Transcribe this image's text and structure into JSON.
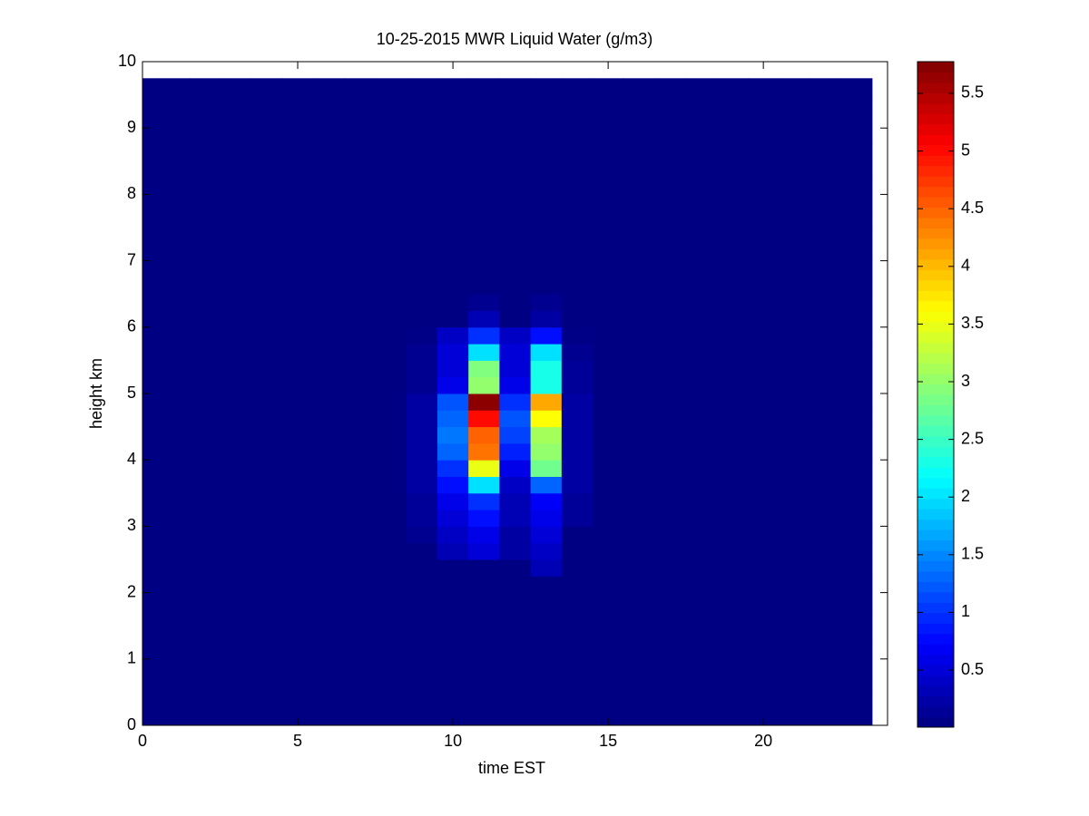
{
  "chart_data": {
    "type": "heatmap",
    "title": "10-25-2015 MWR Liquid Water (g/m3)",
    "x_label": "time EST",
    "y_label": "height km",
    "x_edges": [
      0,
      0.5,
      1.5,
      2.5,
      3.5,
      4.5,
      5.5,
      6.5,
      7.5,
      8.5,
      9.5,
      10.5,
      11.5,
      12.5,
      13.5,
      14.5,
      15.5,
      16.5,
      17.5,
      18.5,
      19.5,
      20.5,
      21.5,
      22.5,
      23.5
    ],
    "y_edges": [
      0,
      0.25,
      0.5,
      0.75,
      1,
      1.25,
      1.5,
      1.75,
      2,
      2.25,
      2.5,
      2.75,
      3,
      3.25,
      3.5,
      3.75,
      4,
      4.25,
      4.5,
      4.75,
      5,
      5.25,
      5.5,
      5.75,
      6,
      6.25,
      6.5,
      6.75,
      7,
      7.25,
      7.5,
      7.75,
      8,
      8.25,
      8.5,
      8.75,
      9,
      9.25,
      9.5,
      9.75
    ],
    "values": [
      [
        0.02,
        0.02,
        0.02,
        0.02,
        0.02,
        0.02,
        0.02,
        0.02,
        0.02,
        0.02,
        0.02,
        0.02,
        0.02,
        0.02,
        0.02,
        0.02,
        0.02,
        0.02,
        0.02,
        0.02,
        0.02,
        0.02,
        0.02,
        0.02
      ],
      [
        0.02,
        0.02,
        0.02,
        0.02,
        0.02,
        0.02,
        0.02,
        0.02,
        0.02,
        0.02,
        0.02,
        0.02,
        0.02,
        0.02,
        0.02,
        0.02,
        0.02,
        0.02,
        0.02,
        0.02,
        0.02,
        0.02,
        0.02,
        0.02
      ],
      [
        0.02,
        0.02,
        0.02,
        0.02,
        0.02,
        0.02,
        0.02,
        0.02,
        0.02,
        0.02,
        0.02,
        0.02,
        0.02,
        0.02,
        0.02,
        0.02,
        0.02,
        0.02,
        0.02,
        0.02,
        0.02,
        0.02,
        0.02,
        0.02
      ],
      [
        0.02,
        0.02,
        0.02,
        0.02,
        0.02,
        0.02,
        0.02,
        0.02,
        0.02,
        0.02,
        0.02,
        0.02,
        0.02,
        0.02,
        0.02,
        0.02,
        0.02,
        0.02,
        0.02,
        0.02,
        0.02,
        0.02,
        0.02,
        0.02
      ],
      [
        0.02,
        0.02,
        0.02,
        0.02,
        0.02,
        0.02,
        0.02,
        0.02,
        0.02,
        0.02,
        0.02,
        0.02,
        0.02,
        0.02,
        0.02,
        0.02,
        0.02,
        0.02,
        0.02,
        0.02,
        0.02,
        0.02,
        0.02,
        0.02
      ],
      [
        0.02,
        0.02,
        0.02,
        0.02,
        0.02,
        0.02,
        0.02,
        0.02,
        0.02,
        0.02,
        0.02,
        0.02,
        0.02,
        0.02,
        0.02,
        0.02,
        0.02,
        0.02,
        0.02,
        0.02,
        0.02,
        0.02,
        0.02,
        0.02
      ],
      [
        0.02,
        0.02,
        0.02,
        0.02,
        0.02,
        0.02,
        0.02,
        0.02,
        0.02,
        0.02,
        0.02,
        0.02,
        0.02,
        0.02,
        0.02,
        0.02,
        0.02,
        0.02,
        0.02,
        0.02,
        0.02,
        0.02,
        0.02,
        0.02
      ],
      [
        0.02,
        0.02,
        0.02,
        0.02,
        0.02,
        0.02,
        0.02,
        0.02,
        0.02,
        0.02,
        0.02,
        0.02,
        0.02,
        0.02,
        0.02,
        0.02,
        0.02,
        0.02,
        0.02,
        0.02,
        0.02,
        0.02,
        0.02,
        0.02
      ],
      [
        0.02,
        0.02,
        0.02,
        0.02,
        0.02,
        0.02,
        0.02,
        0.02,
        0.02,
        0.02,
        0.02,
        0.02,
        0.02,
        0.02,
        0.02,
        0.02,
        0.02,
        0.02,
        0.02,
        0.02,
        0.02,
        0.02,
        0.02,
        0.02
      ],
      [
        0.02,
        0.02,
        0.02,
        0.02,
        0.02,
        0.02,
        0.02,
        0.02,
        0.02,
        0.02,
        0.02,
        0.02,
        0.02,
        0.3,
        0.02,
        0.02,
        0.02,
        0.02,
        0.02,
        0.02,
        0.02,
        0.02,
        0.02,
        0.02
      ],
      [
        0.02,
        0.02,
        0.02,
        0.02,
        0.02,
        0.02,
        0.02,
        0.02,
        0.02,
        0.02,
        0.3,
        0.5,
        0.2,
        0.4,
        0.02,
        0.02,
        0.02,
        0.02,
        0.02,
        0.02,
        0.02,
        0.02,
        0.02,
        0.02
      ],
      [
        0.02,
        0.02,
        0.02,
        0.02,
        0.02,
        0.02,
        0.02,
        0.02,
        0.02,
        0.1,
        0.4,
        0.6,
        0.2,
        0.5,
        0.02,
        0.02,
        0.02,
        0.02,
        0.02,
        0.02,
        0.02,
        0.02,
        0.02,
        0.02
      ],
      [
        0.02,
        0.02,
        0.02,
        0.02,
        0.02,
        0.02,
        0.02,
        0.02,
        0.02,
        0.15,
        0.5,
        0.8,
        0.3,
        0.6,
        0.15,
        0.02,
        0.02,
        0.02,
        0.02,
        0.02,
        0.02,
        0.02,
        0.02,
        0.02
      ],
      [
        0.02,
        0.02,
        0.02,
        0.02,
        0.02,
        0.02,
        0.02,
        0.02,
        0.02,
        0.15,
        0.6,
        1.0,
        0.3,
        0.7,
        0.15,
        0.02,
        0.02,
        0.02,
        0.02,
        0.02,
        0.02,
        0.02,
        0.02,
        0.02
      ],
      [
        0.02,
        0.02,
        0.02,
        0.02,
        0.02,
        0.02,
        0.02,
        0.02,
        0.02,
        0.2,
        0.8,
        2.0,
        0.4,
        1.3,
        0.2,
        0.02,
        0.02,
        0.02,
        0.02,
        0.02,
        0.02,
        0.02,
        0.02,
        0.02
      ],
      [
        0.02,
        0.02,
        0.02,
        0.02,
        0.02,
        0.02,
        0.02,
        0.02,
        0.02,
        0.2,
        1.0,
        3.5,
        0.6,
        2.8,
        0.2,
        0.02,
        0.02,
        0.02,
        0.02,
        0.02,
        0.02,
        0.02,
        0.02,
        0.02
      ],
      [
        0.02,
        0.02,
        0.02,
        0.02,
        0.02,
        0.02,
        0.02,
        0.02,
        0.02,
        0.2,
        1.3,
        4.4,
        0.9,
        3.0,
        0.2,
        0.02,
        0.02,
        0.02,
        0.02,
        0.02,
        0.02,
        0.02,
        0.02,
        0.02
      ],
      [
        0.02,
        0.02,
        0.02,
        0.02,
        0.02,
        0.02,
        0.02,
        0.02,
        0.02,
        0.2,
        1.4,
        4.5,
        1.1,
        3.1,
        0.2,
        0.02,
        0.02,
        0.02,
        0.02,
        0.02,
        0.02,
        0.02,
        0.02,
        0.02
      ],
      [
        0.02,
        0.02,
        0.02,
        0.02,
        0.02,
        0.02,
        0.02,
        0.02,
        0.02,
        0.2,
        1.3,
        5.0,
        1.2,
        3.6,
        0.2,
        0.02,
        0.02,
        0.02,
        0.02,
        0.02,
        0.02,
        0.02,
        0.02,
        0.02
      ],
      [
        0.02,
        0.02,
        0.02,
        0.02,
        0.02,
        0.02,
        0.02,
        0.02,
        0.02,
        0.2,
        1.2,
        5.7,
        1.0,
        4.1,
        0.2,
        0.02,
        0.02,
        0.02,
        0.02,
        0.02,
        0.02,
        0.02,
        0.02,
        0.02
      ],
      [
        0.02,
        0.02,
        0.02,
        0.02,
        0.02,
        0.02,
        0.02,
        0.02,
        0.02,
        0.1,
        0.6,
        3.0,
        0.6,
        2.3,
        0.15,
        0.02,
        0.02,
        0.02,
        0.02,
        0.02,
        0.02,
        0.02,
        0.02,
        0.02
      ],
      [
        0.02,
        0.02,
        0.02,
        0.02,
        0.02,
        0.02,
        0.02,
        0.02,
        0.02,
        0.1,
        0.5,
        2.9,
        0.5,
        2.3,
        0.15,
        0.02,
        0.02,
        0.02,
        0.02,
        0.02,
        0.02,
        0.02,
        0.02,
        0.02
      ],
      [
        0.02,
        0.02,
        0.02,
        0.02,
        0.02,
        0.02,
        0.02,
        0.02,
        0.02,
        0.1,
        0.5,
        2.0,
        0.5,
        2.0,
        0.1,
        0.02,
        0.02,
        0.02,
        0.02,
        0.02,
        0.02,
        0.02,
        0.02,
        0.02
      ],
      [
        0.02,
        0.02,
        0.02,
        0.02,
        0.02,
        0.02,
        0.02,
        0.02,
        0.02,
        0.05,
        0.4,
        1.0,
        0.4,
        0.8,
        0.05,
        0.02,
        0.02,
        0.02,
        0.02,
        0.02,
        0.02,
        0.02,
        0.02,
        0.02
      ],
      [
        0.02,
        0.02,
        0.02,
        0.02,
        0.02,
        0.02,
        0.02,
        0.02,
        0.02,
        0.02,
        0.02,
        0.3,
        0.02,
        0.2,
        0.02,
        0.02,
        0.02,
        0.02,
        0.02,
        0.02,
        0.02,
        0.02,
        0.02,
        0.02
      ],
      [
        0.02,
        0.02,
        0.02,
        0.02,
        0.02,
        0.02,
        0.02,
        0.02,
        0.02,
        0.02,
        0.02,
        0.1,
        0.02,
        0.1,
        0.02,
        0.02,
        0.02,
        0.02,
        0.02,
        0.02,
        0.02,
        0.02,
        0.02,
        0.02
      ],
      [
        0.02,
        0.02,
        0.02,
        0.02,
        0.02,
        0.02,
        0.02,
        0.02,
        0.02,
        0.02,
        0.02,
        0.02,
        0.02,
        0.02,
        0.02,
        0.02,
        0.02,
        0.02,
        0.02,
        0.02,
        0.02,
        0.02,
        0.02,
        0.02
      ],
      [
        0.02,
        0.02,
        0.02,
        0.02,
        0.02,
        0.02,
        0.02,
        0.02,
        0.02,
        0.02,
        0.02,
        0.02,
        0.02,
        0.02,
        0.02,
        0.02,
        0.02,
        0.02,
        0.02,
        0.02,
        0.02,
        0.02,
        0.02,
        0.02
      ],
      [
        0.02,
        0.02,
        0.02,
        0.02,
        0.02,
        0.02,
        0.02,
        0.02,
        0.02,
        0.02,
        0.02,
        0.02,
        0.02,
        0.02,
        0.02,
        0.02,
        0.02,
        0.02,
        0.02,
        0.02,
        0.02,
        0.02,
        0.02,
        0.02
      ],
      [
        0.02,
        0.02,
        0.02,
        0.02,
        0.02,
        0.02,
        0.02,
        0.02,
        0.02,
        0.02,
        0.02,
        0.02,
        0.02,
        0.02,
        0.02,
        0.02,
        0.02,
        0.02,
        0.02,
        0.02,
        0.02,
        0.02,
        0.02,
        0.02
      ],
      [
        0.02,
        0.02,
        0.02,
        0.02,
        0.02,
        0.02,
        0.02,
        0.02,
        0.02,
        0.02,
        0.02,
        0.02,
        0.02,
        0.02,
        0.02,
        0.02,
        0.02,
        0.02,
        0.02,
        0.02,
        0.02,
        0.02,
        0.02,
        0.02
      ],
      [
        0.02,
        0.02,
        0.02,
        0.02,
        0.02,
        0.02,
        0.02,
        0.02,
        0.02,
        0.02,
        0.02,
        0.02,
        0.02,
        0.02,
        0.02,
        0.02,
        0.02,
        0.02,
        0.02,
        0.02,
        0.02,
        0.02,
        0.02,
        0.02
      ],
      [
        0.02,
        0.02,
        0.02,
        0.02,
        0.02,
        0.02,
        0.02,
        0.02,
        0.02,
        0.02,
        0.02,
        0.02,
        0.02,
        0.02,
        0.02,
        0.02,
        0.02,
        0.02,
        0.02,
        0.02,
        0.02,
        0.02,
        0.02,
        0.02
      ],
      [
        0.02,
        0.02,
        0.02,
        0.02,
        0.02,
        0.02,
        0.02,
        0.02,
        0.02,
        0.02,
        0.02,
        0.02,
        0.02,
        0.02,
        0.02,
        0.02,
        0.02,
        0.02,
        0.02,
        0.02,
        0.02,
        0.02,
        0.02,
        0.02
      ],
      [
        0.02,
        0.02,
        0.02,
        0.02,
        0.02,
        0.02,
        0.02,
        0.02,
        0.02,
        0.02,
        0.02,
        0.02,
        0.02,
        0.02,
        0.02,
        0.02,
        0.02,
        0.02,
        0.02,
        0.02,
        0.02,
        0.02,
        0.02,
        0.02
      ],
      [
        0.02,
        0.02,
        0.02,
        0.02,
        0.02,
        0.02,
        0.02,
        0.02,
        0.02,
        0.02,
        0.02,
        0.02,
        0.02,
        0.02,
        0.02,
        0.02,
        0.02,
        0.02,
        0.02,
        0.02,
        0.02,
        0.02,
        0.02,
        0.02
      ],
      [
        0.02,
        0.02,
        0.02,
        0.02,
        0.02,
        0.02,
        0.02,
        0.02,
        0.02,
        0.02,
        0.02,
        0.02,
        0.02,
        0.02,
        0.02,
        0.02,
        0.02,
        0.02,
        0.02,
        0.02,
        0.02,
        0.02,
        0.02,
        0.02
      ],
      [
        0.02,
        0.02,
        0.02,
        0.02,
        0.02,
        0.02,
        0.02,
        0.02,
        0.02,
        0.02,
        0.02,
        0.02,
        0.02,
        0.02,
        0.02,
        0.02,
        0.02,
        0.02,
        0.02,
        0.02,
        0.02,
        0.02,
        0.02,
        0.02
      ],
      [
        0.02,
        0.02,
        0.02,
        0.02,
        0.02,
        0.02,
        0.02,
        0.02,
        0.02,
        0.02,
        0.02,
        0.02,
        0.02,
        0.02,
        0.02,
        0.02,
        0.02,
        0.02,
        0.02,
        0.02,
        0.02,
        0.02,
        0.02,
        0.02
      ]
    ],
    "colormap": "jet",
    "xlim": [
      0,
      24
    ],
    "xticks": [
      0,
      5,
      10,
      15,
      20
    ],
    "ylim": [
      0,
      10
    ],
    "yticks": [
      0,
      1,
      2,
      3,
      4,
      5,
      6,
      7,
      8,
      9,
      10
    ],
    "zlim": [
      0.005,
      5.775
    ],
    "zticks": [
      0.5,
      1,
      1.5,
      2,
      2.5,
      3,
      3.5,
      4,
      4.5,
      5,
      5.5
    ]
  }
}
